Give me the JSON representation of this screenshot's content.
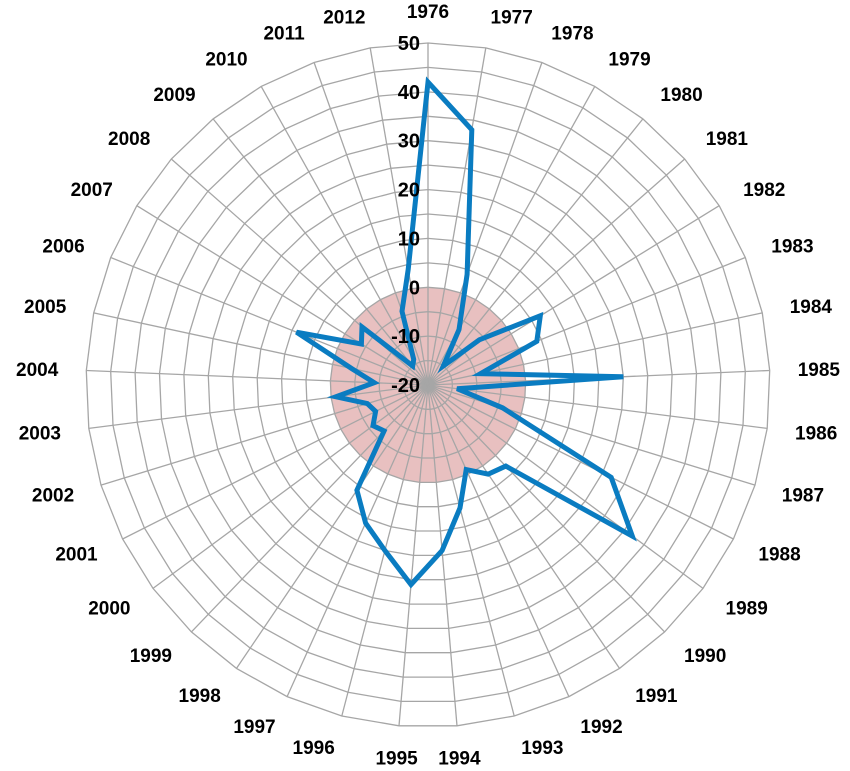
{
  "chart_data": {
    "type": "radar",
    "title": "",
    "categories": [
      "1976",
      "1977",
      "1978",
      "1979",
      "1980",
      "1981",
      "1982",
      "1983",
      "1984",
      "1985",
      "1986",
      "1987",
      "1988",
      "1989",
      "1990",
      "1991",
      "1992",
      "1993",
      "1994",
      "1995",
      "1996",
      "1997",
      "1998",
      "1999",
      "2000",
      "2001",
      "2002",
      "2003",
      "2004",
      "2005",
      "2006",
      "2007",
      "2008",
      "2009",
      "2010",
      "2011",
      "2012"
    ],
    "r_ticks": [
      -20,
      -10,
      0,
      10,
      20,
      30,
      40,
      50
    ],
    "rlim": [
      -20,
      50
    ],
    "grid": true,
    "series": [
      {
        "values": [
          42,
          33,
          4,
          -7,
          -15,
          -6,
          7,
          4,
          -9,
          20,
          -14,
          -4,
          22,
          32,
          3,
          2,
          -1,
          6,
          14,
          21,
          15,
          11,
          6,
          -7,
          -6,
          -8,
          -7,
          -1,
          -9,
          -4,
          9,
          -4,
          -2,
          -15,
          -14,
          -4,
          4
        ],
        "color": "#0a7cc1"
      }
    ],
    "shaded_band": {
      "from": -20,
      "to": 0,
      "color": "#e8c0c0"
    }
  }
}
